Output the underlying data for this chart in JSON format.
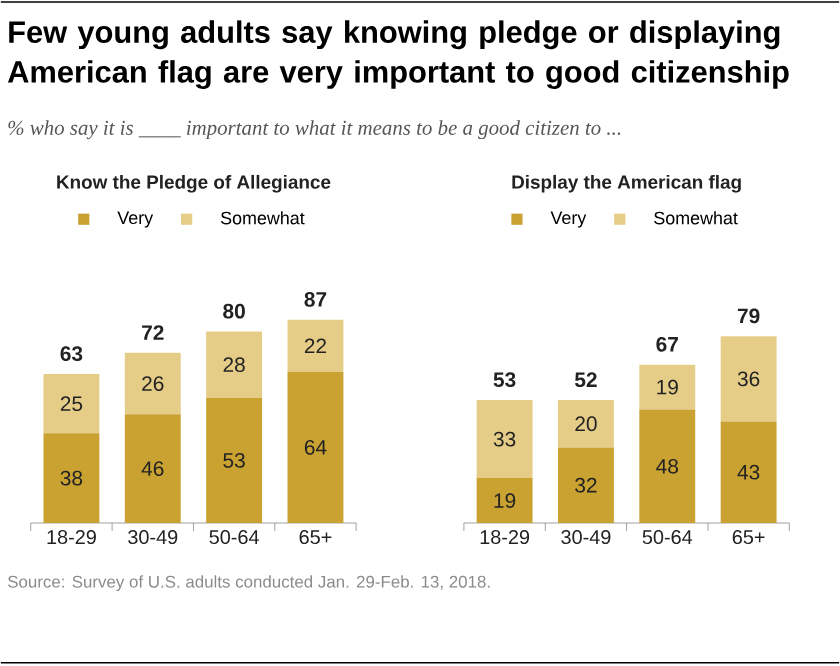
{
  "chart_data": [
    {
      "type": "bar",
      "stacked": true,
      "title": "Know the Pledge of Allegiance",
      "categories": [
        "18-29",
        "30-49",
        "50-64",
        "65+"
      ],
      "series": [
        {
          "name": "Very",
          "color": "#c9a232",
          "values": [
            38,
            46,
            53,
            64
          ]
        },
        {
          "name": "Somewhat",
          "color": "#e5cd88",
          "values": [
            25,
            26,
            28,
            22
          ]
        }
      ],
      "totals": [
        "63",
        "72",
        "80",
        "87"
      ],
      "data_labels": true,
      "legend": "top",
      "annotations": [
        "Few young adults say knowing pledge or displaying American flag are very important to good citizenship",
        "% who say it is ____ important to what it means to be a good citizen to ...",
        "Source: Survey of U.S. adults conducted Jan. 29-Feb. 13, 2018."
      ]
    },
    {
      "type": "bar",
      "stacked": true,
      "title": "Display the American flag",
      "categories": [
        "18-29",
        "30-49",
        "50-64",
        "65+"
      ],
      "series": [
        {
          "name": "Very",
          "color": "#c9a232",
          "values": [
            19,
            32,
            48,
            43
          ]
        },
        {
          "name": "Somewhat",
          "color": "#e5cd88",
          "values": [
            33,
            20,
            19,
            36
          ]
        }
      ],
      "totals": [
        "53",
        "52",
        "67",
        "79"
      ],
      "data_labels": true,
      "legend": "top"
    }
  ]
}
